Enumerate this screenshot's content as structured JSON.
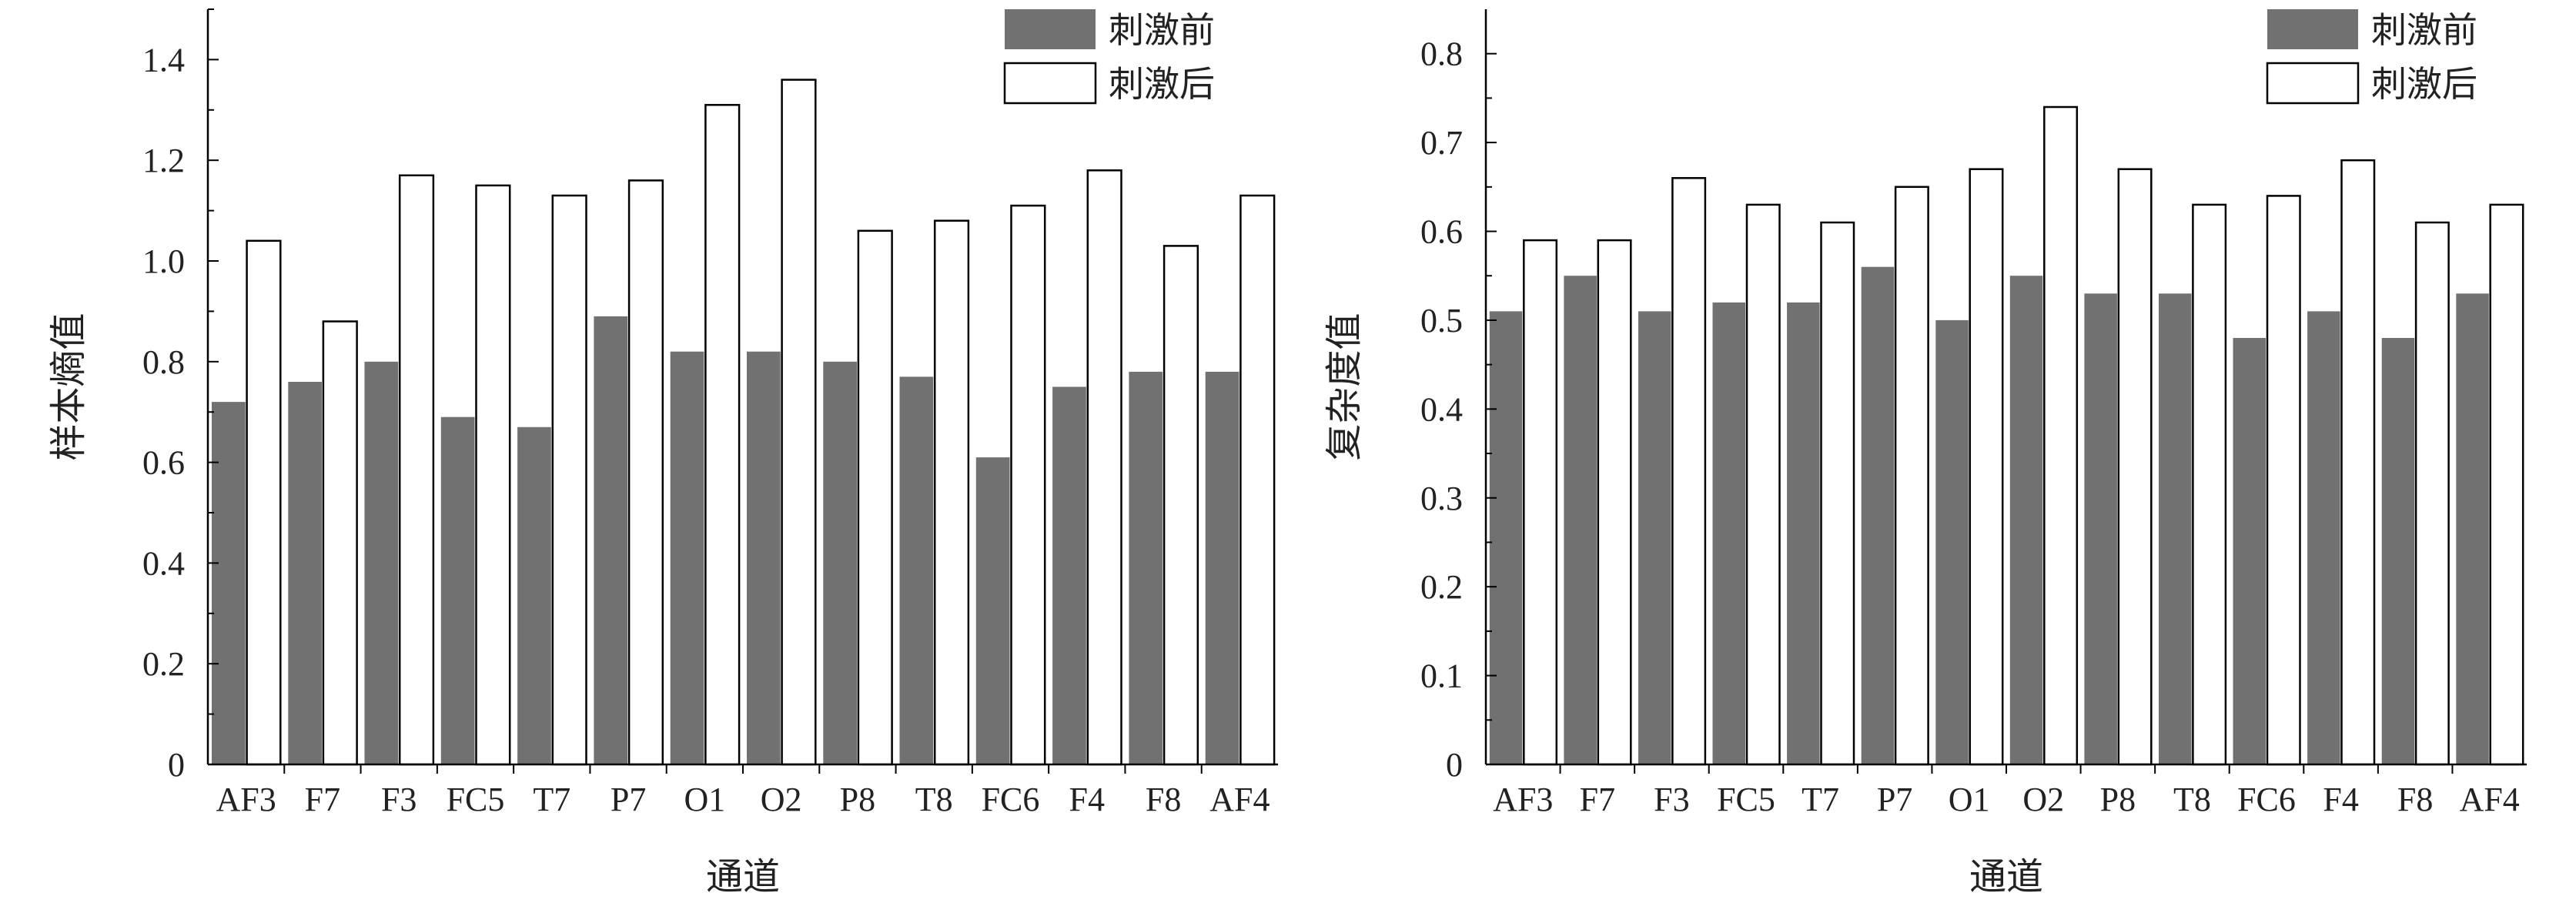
{
  "chart_data": [
    {
      "type": "bar",
      "categories": [
        "AF3",
        "F7",
        "F3",
        "FC5",
        "T7",
        "P7",
        "O1",
        "O2",
        "P8",
        "T8",
        "FC6",
        "F4",
        "F8",
        "AF4"
      ],
      "series": [
        {
          "name": "刺激前",
          "color": "#717171",
          "values": [
            0.72,
            0.76,
            0.8,
            0.69,
            0.67,
            0.89,
            0.82,
            0.82,
            0.8,
            0.77,
            0.61,
            0.75,
            0.78,
            0.78
          ]
        },
        {
          "name": "刺激后",
          "color": "#ffffff",
          "values": [
            1.04,
            0.88,
            1.17,
            1.15,
            1.13,
            1.16,
            1.31,
            1.36,
            1.06,
            1.08,
            1.11,
            1.18,
            1.03,
            1.13
          ]
        }
      ],
      "xlabel": "通道",
      "ylabel": "样本熵值",
      "ylim": [
        0,
        1.5
      ],
      "yticks": [
        "0",
        "0.2",
        "0.4",
        "0.6",
        "0.8",
        "1.0",
        "1.2",
        "1.4"
      ],
      "legend": "top-right",
      "grid": false
    },
    {
      "type": "bar",
      "categories": [
        "AF3",
        "F7",
        "F3",
        "FC5",
        "T7",
        "P7",
        "O1",
        "O2",
        "P8",
        "T8",
        "FC6",
        "F4",
        "F8",
        "AF4"
      ],
      "series": [
        {
          "name": "刺激前",
          "color": "#717171",
          "values": [
            0.51,
            0.55,
            0.51,
            0.52,
            0.52,
            0.56,
            0.5,
            0.55,
            0.53,
            0.53,
            0.48,
            0.51,
            0.48,
            0.53
          ]
        },
        {
          "name": "刺激后",
          "color": "#ffffff",
          "values": [
            0.59,
            0.59,
            0.66,
            0.63,
            0.61,
            0.65,
            0.67,
            0.74,
            0.67,
            0.63,
            0.64,
            0.68,
            0.61,
            0.63
          ]
        }
      ],
      "xlabel": "通道",
      "ylabel": "复杂度值",
      "ylim": [
        0,
        0.85
      ],
      "yticks": [
        "0",
        "0.1",
        "0.2",
        "0.3",
        "0.4",
        "0.5",
        "0.6",
        "0.7",
        "0.8"
      ],
      "legend": "top-right",
      "grid": false
    }
  ]
}
